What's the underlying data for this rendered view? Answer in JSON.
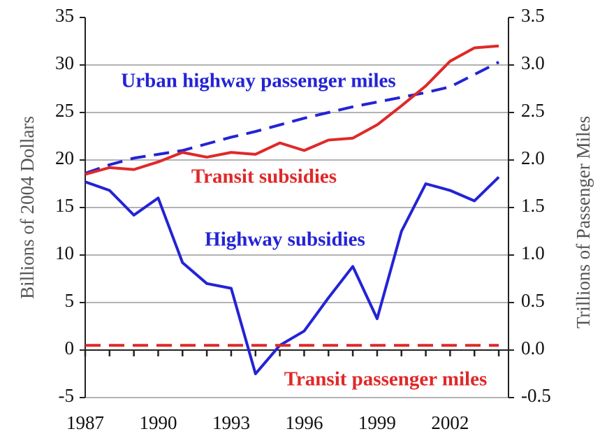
{
  "chart_data": {
    "type": "line",
    "x": [
      1987,
      1988,
      1989,
      1990,
      1991,
      1992,
      1993,
      1994,
      1995,
      1996,
      1997,
      1998,
      1999,
      2000,
      2001,
      2002,
      2003,
      2004
    ],
    "xlim": [
      1987,
      2004.4
    ],
    "xticks": [
      1987,
      1990,
      1993,
      1996,
      1999,
      2002
    ],
    "ylabel": "Billions of 2004 Dollars",
    "y2label": "Trillions of Passenger Miles",
    "ylim": [
      -5,
      35
    ],
    "yticks": [
      -5,
      0,
      5,
      10,
      15,
      20,
      25,
      30,
      35
    ],
    "y2lim": [
      -0.5,
      3.5
    ],
    "y2ticks": [
      -0.5,
      {
        "value": 0,
        "label": "0.0"
      },
      0.5,
      {
        "value": 1,
        "label": "1.0"
      },
      1.5,
      {
        "value": 2,
        "label": "2.0"
      },
      2.5,
      {
        "value": 3,
        "label": "3.0"
      },
      3.5
    ],
    "grid": true,
    "series": [
      {
        "name": "Urban highway passenger miles",
        "color": "#2323d6",
        "dashed": true,
        "axis": "y2",
        "values": [
          1.86,
          1.95,
          2.02,
          2.06,
          2.1,
          2.17,
          2.24,
          2.3,
          2.37,
          2.44,
          2.5,
          2.56,
          2.61,
          2.66,
          2.71,
          2.77,
          2.9,
          3.03
        ]
      },
      {
        "name": "Transit subsidies",
        "color": "#e02828",
        "dashed": false,
        "values": [
          18.5,
          19.2,
          19.0,
          19.8,
          20.8,
          20.3,
          20.8,
          20.6,
          21.8,
          21.0,
          22.1,
          22.3,
          23.7,
          25.7,
          27.8,
          30.4,
          31.8,
          32.0
        ]
      },
      {
        "name": "Highway subsidies",
        "color": "#2323d6",
        "dashed": false,
        "values": [
          17.7,
          16.8,
          14.2,
          16.0,
          9.2,
          7.0,
          6.5,
          -2.5,
          0.5,
          2.0,
          5.5,
          8.8,
          3.3,
          12.5,
          17.5,
          16.8,
          15.7,
          18.2
        ]
      },
      {
        "name": "Transit passenger miles",
        "color": "#e02828",
        "dashed": true,
        "axis": "y2",
        "values": [
          0.05,
          0.05,
          0.05,
          0.05,
          0.05,
          0.05,
          0.05,
          0.05,
          0.05,
          0.05,
          0.05,
          0.05,
          0.05,
          0.05,
          0.05,
          0.05,
          0.05,
          0.05
        ]
      }
    ]
  }
}
